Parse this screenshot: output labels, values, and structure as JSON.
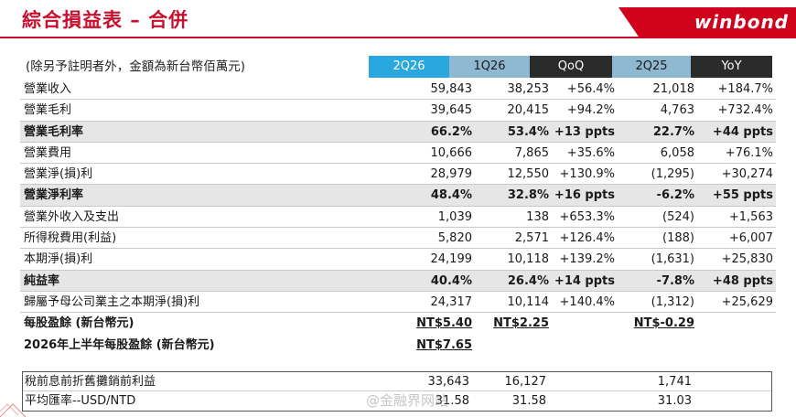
{
  "title": "綜合損益表 – 合併",
  "logo": "winbond",
  "header": {
    "note": "(除另予註明者外，金額為新台幣佰萬元)",
    "cols": [
      "2Q26",
      "1Q26",
      "QoQ",
      "2Q25",
      "YoY"
    ]
  },
  "rows": [
    {
      "label": "營業收入",
      "v": [
        "59,843",
        "38,253",
        "+56.4%",
        "21,018",
        "+184.7%"
      ]
    },
    {
      "label": "營業毛利",
      "v": [
        "39,645",
        "20,415",
        "+94.2%",
        "4,763",
        "+732.4%"
      ]
    },
    {
      "label": "營業毛利率",
      "v": [
        "66.2%",
        "53.4%",
        "+13 ppts",
        "22.7%",
        "+44 ppts"
      ]
    },
    {
      "label": "營業費用",
      "v": [
        "10,666",
        "7,865",
        "+35.6%",
        "6,058",
        "+76.1%"
      ]
    },
    {
      "label": "營業淨(損)利",
      "v": [
        "28,979",
        "12,550",
        "+130.9%",
        "(1,295)",
        "+30,274"
      ]
    },
    {
      "label": "營業淨利率",
      "v": [
        "48.4%",
        "32.8%",
        "+16 ppts",
        "-6.2%",
        "+55 ppts"
      ]
    },
    {
      "label": "營業外收入及支出",
      "v": [
        "1,039",
        "138",
        "+653.3%",
        "(524)",
        "+1,563"
      ]
    },
    {
      "label": "所得稅費用(利益)",
      "v": [
        "5,820",
        "2,571",
        "+126.4%",
        "(188)",
        "+6,007"
      ]
    },
    {
      "label": "本期淨(損)利",
      "v": [
        "24,199",
        "10,118",
        "+139.2%",
        "(1,631)",
        "+25,830"
      ]
    },
    {
      "label": "純益率",
      "v": [
        "40.4%",
        "26.4%",
        "+14 ppts",
        "-7.8%",
        "+48 ppts"
      ]
    },
    {
      "label": "歸屬予母公司業主之本期淨(損)利",
      "v": [
        "24,317",
        "10,114",
        "+140.4%",
        "(1,312)",
        "+25,629"
      ]
    },
    {
      "label": "每股盈餘 (新台幣元)",
      "v": [
        "NT$5.40",
        "NT$2.25",
        "",
        "NT$-0.29",
        ""
      ]
    },
    {
      "label": "2026年上半年每股盈餘 (新台幣元)",
      "v": [
        "NT$7.65",
        "",
        "",
        "",
        ""
      ]
    }
  ],
  "box": [
    {
      "label": "稅前息前折舊攤銷前利益",
      "v": [
        "33,643",
        "16,127",
        "",
        "1,741",
        ""
      ]
    },
    {
      "label": "平均匯率--USD/NTD",
      "v": [
        "31.58",
        "31.58",
        "",
        "31.03",
        ""
      ]
    }
  ],
  "watermark": "@金融界网站",
  "colors": {
    "accent": "#c8102e",
    "header_blue": "#29a8e0",
    "header_light": "#8fb8d1",
    "header_dark": "#2b2b2b"
  }
}
